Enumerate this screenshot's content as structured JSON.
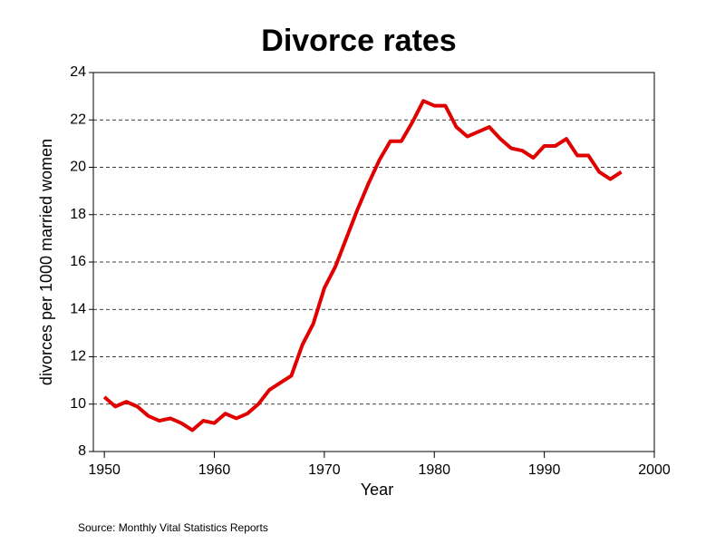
{
  "chart_data": {
    "type": "line",
    "title": "Divorce rates",
    "x_label": "Year",
    "y_label": "divorces per 1000 married women",
    "source": "Source: Monthly Vital Statistics Reports",
    "x": [
      1950,
      1951,
      1952,
      1953,
      1954,
      1955,
      1956,
      1957,
      1958,
      1959,
      1960,
      1961,
      1962,
      1963,
      1964,
      1965,
      1966,
      1967,
      1968,
      1969,
      1970,
      1971,
      1972,
      1973,
      1974,
      1975,
      1976,
      1977,
      1978,
      1979,
      1980,
      1981,
      1982,
      1983,
      1984,
      1985,
      1986,
      1987,
      1988,
      1989,
      1990,
      1991,
      1992,
      1993,
      1994,
      1995,
      1996,
      1997
    ],
    "series": [
      {
        "color": "#e00000",
        "values": [
          10.3,
          9.9,
          10.1,
          9.9,
          9.5,
          9.3,
          9.4,
          9.2,
          8.9,
          9.3,
          9.2,
          9.6,
          9.4,
          9.6,
          10.0,
          10.6,
          10.9,
          11.2,
          12.5,
          13.4,
          14.9,
          15.8,
          17.0,
          18.2,
          19.3,
          20.3,
          21.1,
          21.1,
          21.9,
          22.8,
          22.6,
          22.6,
          21.7,
          21.3,
          21.5,
          21.7,
          21.2,
          20.8,
          20.7,
          20.4,
          20.9,
          20.9,
          21.2,
          20.5,
          20.5,
          19.8,
          19.5,
          19.8
        ]
      }
    ],
    "xlim": [
      1949,
      2000
    ],
    "xticks": [
      1950,
      1960,
      1970,
      1980,
      1990,
      2000
    ],
    "ylim": [
      8,
      24
    ],
    "yticks": [
      8,
      10,
      12,
      14,
      16,
      18,
      20,
      22,
      24
    ],
    "grid": true
  }
}
